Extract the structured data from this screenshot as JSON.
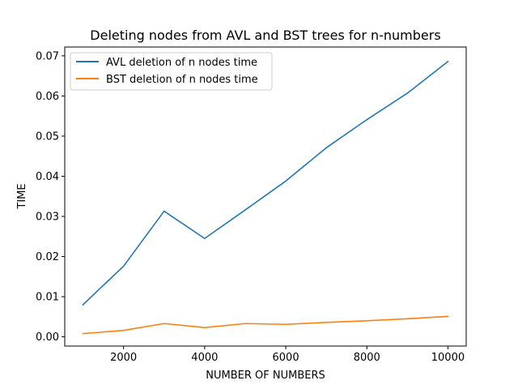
{
  "chart_data": {
    "type": "line",
    "title": "Deleting nodes from AVL and BST trees for n-numbers",
    "xlabel": "NUMBER OF NUMBERS",
    "ylabel": "TIME",
    "xlim": [
      550,
      10450
    ],
    "ylim": [
      -0.0023,
      0.0722
    ],
    "xticks": [
      2000,
      4000,
      6000,
      8000,
      10000
    ],
    "xtick_labels": [
      "2000",
      "4000",
      "6000",
      "8000",
      "10000"
    ],
    "yticks": [
      0.0,
      0.01,
      0.02,
      0.03,
      0.04,
      0.05,
      0.06,
      0.07
    ],
    "ytick_labels": [
      "0.00",
      "0.01",
      "0.02",
      "0.03",
      "0.04",
      "0.05",
      "0.06",
      "0.07"
    ],
    "grid": false,
    "legend_position": "upper-left",
    "x": [
      1000,
      2000,
      3000,
      4000,
      5000,
      6000,
      7000,
      8000,
      9000,
      10000
    ],
    "series": [
      {
        "name": "AVL deletion of n nodes time",
        "color": "#1f77b4",
        "values": [
          0.008,
          0.0176,
          0.0313,
          0.0245,
          0.0316,
          0.0388,
          0.0471,
          0.0541,
          0.0607,
          0.0686
        ]
      },
      {
        "name": "BST deletion of n nodes time",
        "color": "#ff7f0e",
        "values": [
          0.0008,
          0.0016,
          0.0033,
          0.0023,
          0.0033,
          0.0031,
          0.0036,
          0.004,
          0.0045,
          0.0051
        ]
      }
    ]
  }
}
